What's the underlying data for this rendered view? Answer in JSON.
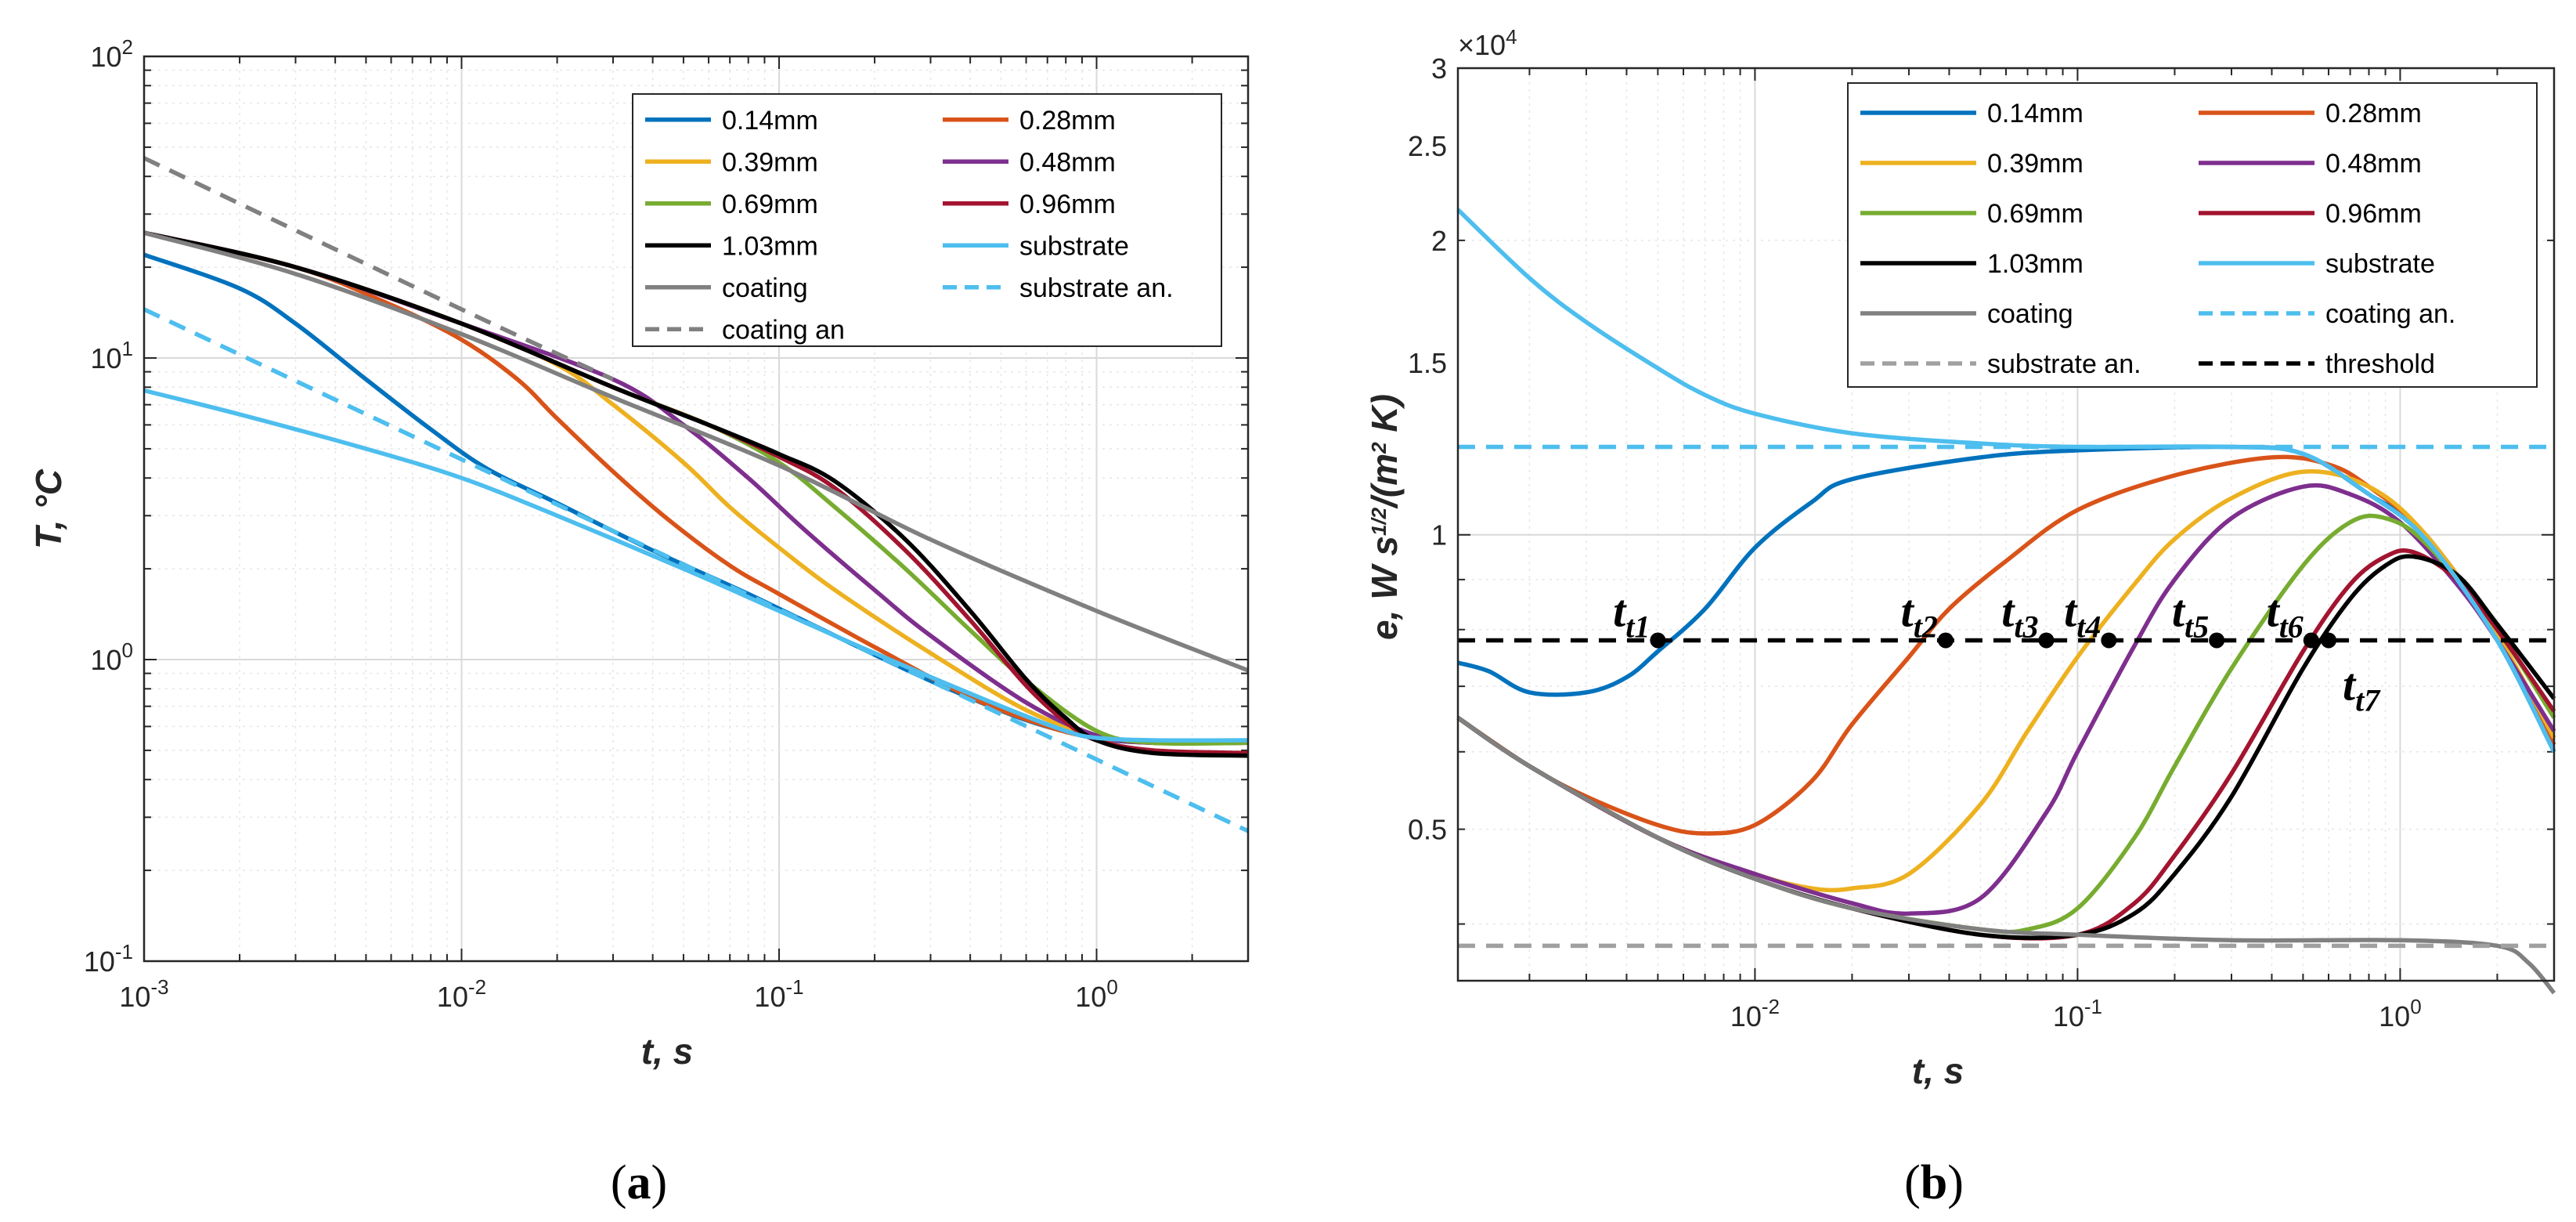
{
  "figure": {
    "caption_a": "(a)",
    "caption_b": "(b)"
  },
  "chart_data": [
    {
      "type": "line",
      "panel": "a",
      "xscale": "log",
      "yscale": "log",
      "xlim": [
        0.001,
        3
      ],
      "ylim": [
        0.1,
        100
      ],
      "grid": true,
      "minor_grid": true,
      "legend_position": "top-right",
      "legend_columns": 2,
      "xlabel": "t, s",
      "ylabel": "T, °C",
      "x_ticks": [
        {
          "value": 0.001,
          "base": "10",
          "exp": "-3"
        },
        {
          "value": 0.01,
          "base": "10",
          "exp": "-2"
        },
        {
          "value": 0.1,
          "base": "10",
          "exp": "-1"
        },
        {
          "value": 1,
          "base": "10",
          "exp": "0"
        }
      ],
      "y_ticks": [
        {
          "value": 0.1,
          "base": "10",
          "exp": "-1"
        },
        {
          "value": 1,
          "base": "10",
          "exp": "0"
        },
        {
          "value": 10,
          "base": "10",
          "exp": "1"
        },
        {
          "value": 100,
          "base": "10",
          "exp": "2"
        }
      ],
      "series": [
        {
          "name": "0.14mm",
          "color": "#0072BD",
          "dash": "solid",
          "x": [
            0.001,
            0.002,
            0.003,
            0.005,
            0.008,
            0.012,
            0.02,
            0.04,
            0.08,
            0.15,
            0.3,
            0.6,
            1,
            1.5,
            3
          ],
          "y": [
            22,
            17,
            13,
            8.5,
            5.8,
            4.3,
            3.3,
            2.3,
            1.65,
            1.2,
            0.85,
            0.63,
            0.55,
            0.53,
            0.53
          ]
        },
        {
          "name": "0.28mm",
          "color": "#D95319",
          "dash": "solid",
          "x": [
            0.001,
            0.003,
            0.006,
            0.01,
            0.015,
            0.02,
            0.03,
            0.045,
            0.07,
            0.1,
            0.2,
            0.4,
            0.7,
            1,
            1.5,
            3
          ],
          "y": [
            26,
            20,
            15,
            11.5,
            8.5,
            6.3,
            4.2,
            2.9,
            2.05,
            1.65,
            1.1,
            0.75,
            0.6,
            0.55,
            0.53,
            0.53
          ]
        },
        {
          "name": "0.39mm",
          "color": "#EDB120",
          "dash": "solid",
          "x": [
            0.001,
            0.003,
            0.01,
            0.02,
            0.03,
            0.05,
            0.07,
            0.1,
            0.15,
            0.3,
            0.6,
            1,
            1.5,
            3
          ],
          "y": [
            26,
            20,
            13,
            9.5,
            7,
            4.5,
            3.2,
            2.35,
            1.7,
            1.05,
            0.68,
            0.56,
            0.53,
            0.53
          ]
        },
        {
          "name": "0.48mm",
          "color": "#7E2F8E",
          "dash": "solid",
          "x": [
            0.001,
            0.003,
            0.01,
            0.03,
            0.05,
            0.08,
            0.12,
            0.2,
            0.3,
            0.6,
            1,
            1.5,
            3
          ],
          "y": [
            26,
            20,
            13,
            8.5,
            6,
            4,
            2.7,
            1.7,
            1.2,
            0.72,
            0.56,
            0.53,
            0.53
          ]
        },
        {
          "name": "0.69mm",
          "color": "#77AC30",
          "dash": "solid",
          "x": [
            0.001,
            0.003,
            0.01,
            0.03,
            0.06,
            0.1,
            0.15,
            0.25,
            0.4,
            0.6,
            1,
            1.5,
            3
          ],
          "y": [
            26,
            20,
            13,
            8,
            6,
            4.5,
            3.2,
            2,
            1.25,
            0.85,
            0.58,
            0.53,
            0.53
          ]
        },
        {
          "name": "0.96mm",
          "color": "#A2142F",
          "dash": "solid",
          "x": [
            0.001,
            0.003,
            0.01,
            0.03,
            0.06,
            0.1,
            0.15,
            0.25,
            0.4,
            0.6,
            0.8,
            1,
            1.5,
            3
          ],
          "y": [
            26,
            20,
            13,
            8,
            6,
            4.7,
            3.7,
            2.3,
            1.35,
            0.82,
            0.62,
            0.54,
            0.5,
            0.49
          ]
        },
        {
          "name": "1.03mm",
          "color": "#000000",
          "dash": "solid",
          "x": [
            0.001,
            0.003,
            0.01,
            0.03,
            0.06,
            0.1,
            0.15,
            0.25,
            0.4,
            0.6,
            0.8,
            1,
            1.5,
            3
          ],
          "y": [
            26,
            20,
            13,
            8,
            6,
            4.8,
            3.9,
            2.5,
            1.45,
            0.86,
            0.64,
            0.54,
            0.49,
            0.48
          ]
        },
        {
          "name": "substrate",
          "color": "#4DBEEE",
          "dash": "solid",
          "x": [
            0.001,
            0.002,
            0.005,
            0.01,
            0.02,
            0.05,
            0.1,
            0.2,
            0.5,
            0.8,
            1,
            1.5,
            3
          ],
          "y": [
            7.8,
            6.5,
            5,
            4,
            3,
            2,
            1.45,
            1.05,
            0.7,
            0.58,
            0.55,
            0.54,
            0.54
          ]
        },
        {
          "name": "coating",
          "color": "#808080",
          "dash": "solid",
          "x": [
            0.001,
            0.003,
            0.01,
            0.03,
            0.1,
            0.3,
            1,
            3
          ],
          "y": [
            26,
            19,
            12,
            7.4,
            4.4,
            2.5,
            1.45,
            0.92
          ]
        },
        {
          "name": "substrate an.",
          "color": "#4DBEEE",
          "dash": "dashed",
          "x": [
            0.001,
            3
          ],
          "y": [
            14.5,
            0.27
          ]
        },
        {
          "name": "coating an",
          "color": "#808080",
          "dash": "dashed",
          "x": [
            0.001,
            0.01,
            0.03
          ],
          "y": [
            46,
            14.5,
            8.5
          ]
        }
      ]
    },
    {
      "type": "line",
      "panel": "b",
      "xscale": "log",
      "yscale": "log",
      "xlim": [
        0.0012,
        3
      ],
      "ylim": [
        3500,
        30000
      ],
      "grid": true,
      "minor_grid": true,
      "legend_position": "top-right",
      "legend_columns": 2,
      "xlabel": "t, s",
      "ylabel": "e, W s",
      "ylabel_sup": "1/2",
      "ylabel_tail": "/(m",
      "ylabel_sup2": "2",
      "ylabel_end": " K)",
      "y_multiplier_base": "×10",
      "y_multiplier_exp": "4",
      "x_ticks": [
        {
          "value": 0.01,
          "base": "10",
          "exp": "-2"
        },
        {
          "value": 0.1,
          "base": "10",
          "exp": "-1"
        },
        {
          "value": 1,
          "base": "10",
          "exp": "0"
        }
      ],
      "y_ticks": [
        {
          "value": 5000,
          "label": "0.5"
        },
        {
          "value": 10000,
          "label": "1"
        },
        {
          "value": 15000,
          "label": "1.5"
        },
        {
          "value": 20000,
          "label": "2"
        },
        {
          "value": 25000,
          "label": "2.5"
        },
        {
          "value": 30000,
          "label": "3"
        }
      ],
      "series": [
        {
          "name": "0.14mm",
          "color": "#0072BD",
          "dash": "solid",
          "x": [
            0.0012,
            0.0015,
            0.002,
            0.003,
            0.004,
            0.005,
            0.007,
            0.01,
            0.015,
            0.02,
            0.05,
            0.1,
            0.3,
            0.5,
            0.8,
            1.2,
            2,
            3
          ],
          "y": [
            7400,
            7250,
            6900,
            6900,
            7150,
            7600,
            8400,
            9700,
            10800,
            11400,
            12000,
            12200,
            12300,
            12100,
            11000,
            10000,
            7800,
            6000
          ]
        },
        {
          "name": "0.28mm",
          "color": "#D95319",
          "dash": "solid",
          "x": [
            0.0012,
            0.002,
            0.003,
            0.005,
            0.007,
            0.01,
            0.015,
            0.02,
            0.03,
            0.04,
            0.06,
            0.1,
            0.2,
            0.4,
            0.6,
            0.8,
            1.2,
            2,
            3
          ],
          "y": [
            6500,
            5800,
            5400,
            5050,
            4950,
            5050,
            5600,
            6400,
            7500,
            8400,
            9400,
            10600,
            11500,
            12000,
            11800,
            11200,
            10000,
            7900,
            6100
          ]
        },
        {
          "name": "0.39mm",
          "color": "#EDB120",
          "dash": "solid",
          "x": [
            0.0012,
            0.002,
            0.005,
            0.01,
            0.015,
            0.02,
            0.03,
            0.05,
            0.07,
            0.1,
            0.15,
            0.2,
            0.3,
            0.5,
            0.8,
            1.2,
            2,
            3
          ],
          "y": [
            6500,
            5800,
            4900,
            4500,
            4350,
            4350,
            4500,
            5300,
            6300,
            7500,
            8900,
            9900,
            10900,
            11600,
            11200,
            10000,
            7900,
            6200
          ]
        },
        {
          "name": "0.48mm",
          "color": "#7E2F8E",
          "dash": "solid",
          "x": [
            0.0012,
            0.002,
            0.005,
            0.01,
            0.02,
            0.03,
            0.05,
            0.08,
            0.1,
            0.15,
            0.2,
            0.3,
            0.5,
            0.7,
            1,
            1.5,
            2,
            3
          ],
          "y": [
            6500,
            5800,
            4900,
            4500,
            4200,
            4100,
            4250,
            5200,
            6000,
            7700,
            9000,
            10400,
            11200,
            11000,
            10300,
            8900,
            7800,
            6300
          ]
        },
        {
          "name": "0.69mm",
          "color": "#77AC30",
          "dash": "solid",
          "x": [
            0.0012,
            0.002,
            0.005,
            0.01,
            0.02,
            0.05,
            0.07,
            0.1,
            0.15,
            0.2,
            0.3,
            0.5,
            0.7,
            0.9,
            1.2,
            2,
            3
          ],
          "y": [
            6500,
            5800,
            4900,
            4450,
            4150,
            3950,
            3950,
            4150,
            4900,
            5800,
            7300,
            9300,
            10300,
            10400,
            9800,
            8000,
            6500
          ]
        },
        {
          "name": "0.96mm",
          "color": "#A2142F",
          "dash": "solid",
          "x": [
            0.0012,
            0.002,
            0.005,
            0.01,
            0.02,
            0.05,
            0.1,
            0.15,
            0.2,
            0.3,
            0.5,
            0.7,
            0.9,
            1.1,
            1.5,
            2,
            3
          ],
          "y": [
            6500,
            5800,
            4900,
            4450,
            4150,
            3900,
            3900,
            4200,
            4700,
            5700,
            7600,
            8900,
            9500,
            9600,
            9000,
            8000,
            6600
          ]
        },
        {
          "name": "1.03mm",
          "color": "#000000",
          "dash": "solid",
          "x": [
            0.0012,
            0.002,
            0.005,
            0.01,
            0.02,
            0.05,
            0.1,
            0.15,
            0.2,
            0.3,
            0.5,
            0.7,
            0.9,
            1.1,
            1.5,
            2,
            3
          ],
          "y": [
            6500,
            5800,
            4900,
            4450,
            4150,
            3900,
            3900,
            4100,
            4500,
            5400,
            7300,
            8600,
            9300,
            9500,
            9100,
            8100,
            6800
          ]
        },
        {
          "name": "substrate",
          "color": "#4DBEEE",
          "dash": "solid",
          "x": [
            0.0012,
            0.002,
            0.003,
            0.005,
            0.007,
            0.01,
            0.02,
            0.05,
            0.1,
            0.3,
            0.5,
            0.8,
            1.2,
            2,
            3
          ],
          "y": [
            21500,
            18300,
            16500,
            14800,
            13900,
            13300,
            12700,
            12400,
            12300,
            12300,
            12100,
            11000,
            9900,
            7800,
            6000
          ]
        },
        {
          "name": "coating",
          "color": "#808080",
          "dash": "solid",
          "x": [
            0.0012,
            0.002,
            0.005,
            0.01,
            0.02,
            0.05,
            0.1,
            0.3,
            1,
            2,
            2.5,
            3
          ],
          "y": [
            6500,
            5800,
            4900,
            4450,
            4150,
            3950,
            3900,
            3850,
            3850,
            3800,
            3650,
            3400
          ]
        },
        {
          "name": "coating an.",
          "color": "#4DBEEE",
          "dash": "dashed",
          "x": [
            0.0012,
            3
          ],
          "y": [
            12300,
            12300
          ]
        },
        {
          "name": "substrate an.",
          "color": "#A0A0A0",
          "dash": "dashed",
          "x": [
            0.0012,
            3
          ],
          "y": [
            3800,
            3800
          ]
        },
        {
          "name": "threshold",
          "color": "#000000",
          "dash": "dashed",
          "x": [
            0.0012,
            3
          ],
          "y": [
            7800,
            7800
          ]
        }
      ],
      "markers": [
        {
          "label_base": "t",
          "label_sub": "t1",
          "x": 0.005,
          "y": 7800
        },
        {
          "label_base": "t",
          "label_sub": "t2",
          "x": 0.039,
          "y": 7800
        },
        {
          "label_base": "t",
          "label_sub": "t3",
          "x": 0.08,
          "y": 7800
        },
        {
          "label_base": "t",
          "label_sub": "t4",
          "x": 0.125,
          "y": 7800
        },
        {
          "label_base": "t",
          "label_sub": "t5",
          "x": 0.27,
          "y": 7800
        },
        {
          "label_base": "t",
          "label_sub": "t6",
          "x": 0.53,
          "y": 7800
        },
        {
          "label_base": "t",
          "label_sub": "t7",
          "x": 0.6,
          "y": 7800
        }
      ]
    }
  ]
}
